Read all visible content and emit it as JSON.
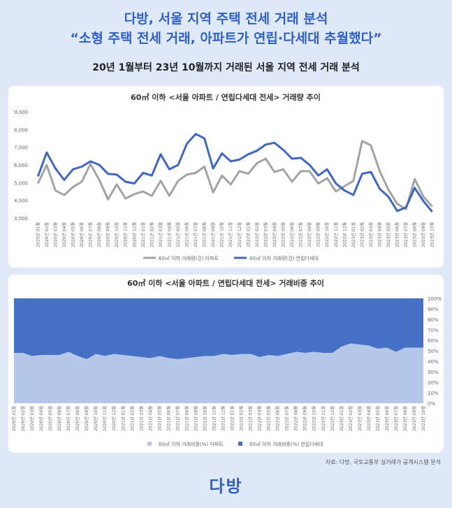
{
  "header": {
    "title": [
      "다방, 서울 지역 주택 전세 거래 분석",
      "“소형 주택 전세 거래, 아파트가 연립·다세대 추월했다”"
    ],
    "subtitle": "20년 1월부터 23년 10월까지 거래된 서울 지역 전세 거래 분석"
  },
  "source": "자료: 다방, 국토교통부 실거래가 공개시스템 분석",
  "logo": "다방",
  "chart_data": [
    {
      "type": "line",
      "title": "60㎡ 이하 <서울 아파트 / 연립다세대 전세> 거래량 추이",
      "categories": [
        "2020년 01월",
        "2020년 02월",
        "2020년 03월",
        "2020년 04월",
        "2020년 05월",
        "2020년 06월",
        "2020년 07월",
        "2020년 08월",
        "2020년 09월",
        "2020년 10월",
        "2020년 11월",
        "2020년 12월",
        "2021년 01월",
        "2021년 02월",
        "2021년 03월",
        "2021년 04월",
        "2021년 05월",
        "2021년 06월",
        "2021년 07월",
        "2021년 08월",
        "2021년 09월",
        "2021년 10월",
        "2021년 11월",
        "2021년 12월",
        "2022년 01월",
        "2022년 02월",
        "2022년 03월",
        "2022년 04월",
        "2022년 05월",
        "2022년 06월",
        "2022년 07월",
        "2022년 08월",
        "2022년 09월",
        "2022년 10월",
        "2022년 11월",
        "2022년 12월",
        "2023년 01월",
        "2023년 02월",
        "2023년 03월",
        "2023년 04월",
        "2023년 05월",
        "2023년 06월",
        "2023년 07월",
        "2023년 08월",
        "2023년 09월",
        "2023년 10월"
      ],
      "series": [
        {
          "name": "60㎡ 이하 거래량(건) 아파트",
          "color": "#a3a3a3",
          "values": [
            4950,
            6000,
            4550,
            4300,
            4750,
            5050,
            6050,
            5150,
            4050,
            4900,
            4100,
            4350,
            4500,
            4250,
            5100,
            4250,
            5100,
            5450,
            5550,
            5900,
            4450,
            5400,
            4900,
            5650,
            5500,
            6100,
            6350,
            5600,
            5750,
            5050,
            5650,
            5650,
            4950,
            5250,
            4500,
            4800,
            5100,
            7350,
            7100,
            5650,
            4600,
            3800,
            3500,
            5200,
            4200,
            3650
          ]
        },
        {
          "name": "60㎡ 이하 거래량(건) 연립다세대",
          "color": "#3f66c2",
          "values": [
            5350,
            6700,
            5800,
            5150,
            5750,
            5900,
            6200,
            6000,
            5500,
            5450,
            5050,
            4950,
            5550,
            5400,
            6600,
            5750,
            6000,
            7200,
            7750,
            7500,
            5800,
            6650,
            6200,
            6300,
            6600,
            6800,
            7150,
            7250,
            6850,
            6350,
            6400,
            6000,
            5400,
            5750,
            4950,
            4550,
            4300,
            5500,
            5600,
            4650,
            4200,
            3400,
            3600,
            4700,
            3950,
            3350
          ]
        }
      ],
      "ylim": [
        3000,
        9000
      ],
      "yticks": [
        {
          "value": 3000,
          "label": "3,000"
        },
        {
          "value": 4000,
          "label": "4,000"
        },
        {
          "value": 5000,
          "label": "5,000"
        },
        {
          "value": 6000,
          "label": "6,000"
        },
        {
          "value": 7000,
          "label": "7,000"
        },
        {
          "value": 8000,
          "label": "8,000"
        },
        {
          "value": 9000,
          "label": "9,000"
        }
      ],
      "grid": false
    },
    {
      "type": "stacked_area",
      "title": "60㎡ 이하 <서울 아파트 / 연립다세대 전세> 거래비중 추이",
      "categories": [
        "2020년 01월",
        "2020년 02월",
        "2020년 03월",
        "2020년 04월",
        "2020년 05월",
        "2020년 06월",
        "2020년 07월",
        "2020년 08월",
        "2020년 09월",
        "2020년 10월",
        "2020년 11월",
        "2020년 12월",
        "2021년 01월",
        "2021년 02월",
        "2021년 03월",
        "2021년 04월",
        "2021년 05월",
        "2021년 06월",
        "2021년 07월",
        "2021년 08월",
        "2021년 09월",
        "2021년 10월",
        "2021년 11월",
        "2021년 12월",
        "2022년 01월",
        "2022년 02월",
        "2022년 03월",
        "2022년 04월",
        "2022년 05월",
        "2022년 06월",
        "2022년 07월",
        "2022년 08월",
        "2022년 09월",
        "2022년 10월",
        "2022년 11월",
        "2022년 12월",
        "2023년 01월",
        "2023년 02월",
        "2023년 03월",
        "2023년 04월",
        "2023년 05월",
        "2023년 06월",
        "2023년 07월",
        "2023년 08월",
        "2023년 09월",
        "2023년 10월"
      ],
      "series": [
        {
          "name": "60㎡ 이하 거래비중(%) 아파트",
          "color": "#b5c8ea",
          "values": [
            48,
            48,
            45,
            46,
            46,
            46,
            49,
            45,
            42,
            47,
            45,
            47,
            46,
            45,
            44,
            43,
            45,
            43,
            42,
            43,
            44,
            45,
            45,
            47,
            46,
            47,
            47,
            44,
            46,
            45,
            47,
            49,
            48,
            49,
            48,
            48,
            54,
            57,
            56,
            55,
            52,
            53,
            49,
            53,
            53,
            53
          ]
        },
        {
          "name": "60㎡ 이하 거래비중(%) 연립다세대",
          "color": "#4670c6",
          "values": [
            52,
            52,
            55,
            54,
            54,
            54,
            51,
            55,
            58,
            53,
            55,
            53,
            54,
            55,
            56,
            57,
            55,
            57,
            58,
            57,
            56,
            55,
            55,
            53,
            54,
            53,
            53,
            56,
            54,
            55,
            53,
            51,
            52,
            51,
            52,
            52,
            46,
            43,
            44,
            45,
            48,
            47,
            51,
            47,
            47,
            47
          ]
        }
      ],
      "ylim": [
        0,
        100
      ],
      "yticks": [
        {
          "value": 0,
          "label": "0%"
        },
        {
          "value": 10,
          "label": "10%"
        },
        {
          "value": 20,
          "label": "20%"
        },
        {
          "value": 30,
          "label": "30%"
        },
        {
          "value": 40,
          "label": "40%"
        },
        {
          "value": 50,
          "label": "50%"
        },
        {
          "value": 60,
          "label": "60%"
        },
        {
          "value": 70,
          "label": "70%"
        },
        {
          "value": 80,
          "label": "80%"
        },
        {
          "value": 90,
          "label": "90%"
        },
        {
          "value": 100,
          "label": "100%"
        }
      ],
      "grid": false
    }
  ]
}
